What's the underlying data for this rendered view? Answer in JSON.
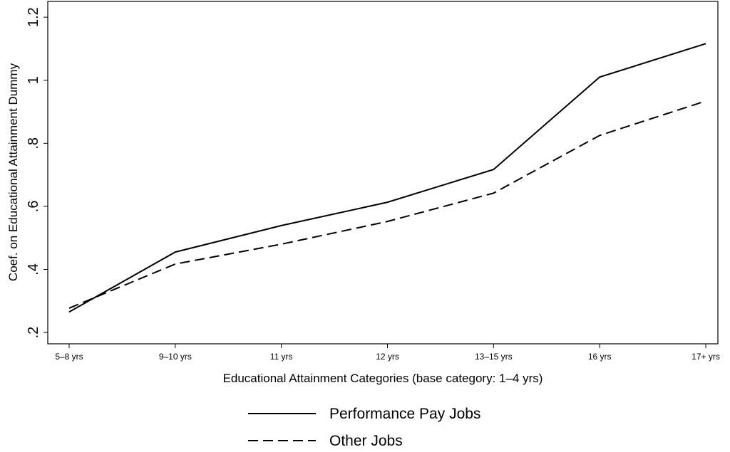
{
  "chart_data": {
    "type": "line",
    "xlabel": "Educational Attainment Categories (base category: 1–4 yrs)",
    "ylabel": "Coef. on Educational Attainment Dummy",
    "categories": [
      "5–8 yrs",
      "9–10 yrs",
      "11 yrs",
      "12 yrs",
      "13–15 yrs",
      "16 yrs",
      "17+ yrs"
    ],
    "series": [
      {
        "name": "Performance Pay Jobs",
        "color": "#000000",
        "style": "solid",
        "values": [
          0.265,
          0.455,
          0.539,
          0.613,
          0.717,
          1.01,
          1.116
        ]
      },
      {
        "name": "Other Jobs",
        "color": "#000000",
        "style": "dashed",
        "values": [
          0.277,
          0.417,
          0.48,
          0.552,
          0.642,
          0.825,
          0.934
        ]
      }
    ],
    "ylim": [
      0.164,
      1.25
    ],
    "yticks": [
      {
        "value": 0.2,
        "label": ".2"
      },
      {
        "value": 0.4,
        "label": ".4"
      },
      {
        "value": 0.6,
        "label": ".6"
      },
      {
        "value": 0.8,
        "label": ".8"
      },
      1,
      1.2
    ],
    "legend": "bottom"
  }
}
